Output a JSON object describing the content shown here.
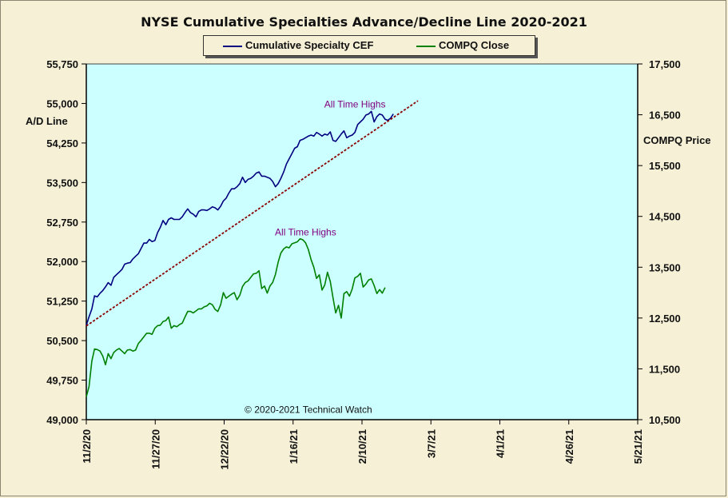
{
  "chart_data": {
    "type": "line",
    "title": "NYSE Cumulative  Specialties  Advance/Decline  Line  2020-2021",
    "legend": [
      {
        "name": "Cumulative Specialty CEF",
        "color": "#000080"
      },
      {
        "name": "COMPQ Close",
        "color": "#008000"
      }
    ],
    "left_axis": {
      "label": "A/D Line",
      "range": [
        49000,
        55750
      ],
      "ticks": [
        "49,000",
        "49,750",
        "50,500",
        "51,250",
        "52,000",
        "52,750",
        "53,500",
        "54,250",
        "55,000",
        "55,750"
      ]
    },
    "right_axis": {
      "label": "COMPQ Price",
      "range": [
        10500,
        17500
      ],
      "ticks": [
        "10,500",
        "11,500",
        "12,500",
        "13,500",
        "14,500",
        "15,500",
        "16,500",
        "17,500"
      ]
    },
    "x_axis": {
      "start": "11/2/20",
      "end": "5/21/21",
      "ticks": [
        "11/2/20",
        "11/27/20",
        "12/22/20",
        "1/16/21",
        "2/10/21",
        "3/7/21",
        "4/1/21",
        "4/26/21",
        "5/21/21"
      ]
    },
    "series": [
      {
        "name": "Cumulative Specialty CEF",
        "color": "#000080",
        "axis": "left",
        "points": [
          [
            0,
            50790
          ],
          [
            1,
            50950
          ],
          [
            2,
            51100
          ],
          [
            3,
            51350
          ],
          [
            4,
            51330
          ],
          [
            5,
            51400
          ],
          [
            6,
            51450
          ],
          [
            7,
            51520
          ],
          [
            8,
            51600
          ],
          [
            9,
            51550
          ],
          [
            10,
            51700
          ],
          [
            11,
            51750
          ],
          [
            12,
            51800
          ],
          [
            13,
            51850
          ],
          [
            14,
            51950
          ],
          [
            15,
            51970
          ],
          [
            16,
            51980
          ],
          [
            17,
            52050
          ],
          [
            18,
            52100
          ],
          [
            19,
            52150
          ],
          [
            20,
            52250
          ],
          [
            21,
            52350
          ],
          [
            22,
            52350
          ],
          [
            23,
            52420
          ],
          [
            24,
            52380
          ],
          [
            25,
            52400
          ],
          [
            26,
            52550
          ],
          [
            27,
            52650
          ],
          [
            28,
            52780
          ],
          [
            29,
            52700
          ],
          [
            30,
            52800
          ],
          [
            31,
            52830
          ],
          [
            32,
            52800
          ],
          [
            33,
            52800
          ],
          [
            34,
            52800
          ],
          [
            35,
            52850
          ],
          [
            36,
            52930
          ],
          [
            37,
            53000
          ],
          [
            38,
            52930
          ],
          [
            39,
            52900
          ],
          [
            40,
            52850
          ],
          [
            41,
            52950
          ],
          [
            42,
            52980
          ],
          [
            43,
            52980
          ],
          [
            44,
            52970
          ],
          [
            45,
            53000
          ],
          [
            46,
            53040
          ],
          [
            47,
            53020
          ],
          [
            48,
            52980
          ],
          [
            49,
            53050
          ],
          [
            50,
            53150
          ],
          [
            51,
            53200
          ],
          [
            52,
            53300
          ],
          [
            53,
            53380
          ],
          [
            54,
            53380
          ],
          [
            55,
            53420
          ],
          [
            56,
            53480
          ],
          [
            57,
            53600
          ],
          [
            58,
            53500
          ],
          [
            59,
            53560
          ],
          [
            60,
            53580
          ],
          [
            61,
            53620
          ],
          [
            62,
            53680
          ],
          [
            63,
            53700
          ],
          [
            64,
            53620
          ],
          [
            65,
            53620
          ],
          [
            66,
            53600
          ],
          [
            67,
            53580
          ],
          [
            68,
            53520
          ],
          [
            69,
            53420
          ],
          [
            70,
            53480
          ],
          [
            71,
            53580
          ],
          [
            72,
            53700
          ],
          [
            73,
            53850
          ],
          [
            74,
            53950
          ],
          [
            75,
            54050
          ],
          [
            76,
            54150
          ],
          [
            77,
            54180
          ],
          [
            78,
            54300
          ],
          [
            79,
            54320
          ],
          [
            80,
            54350
          ],
          [
            81,
            54380
          ],
          [
            82,
            54400
          ],
          [
            83,
            54380
          ],
          [
            84,
            54450
          ],
          [
            85,
            54420
          ],
          [
            86,
            54380
          ],
          [
            87,
            54420
          ],
          [
            88,
            54400
          ],
          [
            89,
            54460
          ],
          [
            90,
            54300
          ],
          [
            91,
            54280
          ],
          [
            92,
            54350
          ],
          [
            93,
            54420
          ],
          [
            94,
            54480
          ],
          [
            95,
            54350
          ],
          [
            96,
            54380
          ],
          [
            97,
            54400
          ],
          [
            98,
            54450
          ],
          [
            99,
            54600
          ],
          [
            100,
            54650
          ],
          [
            101,
            54700
          ],
          [
            102,
            54780
          ],
          [
            103,
            54800
          ],
          [
            104,
            54850
          ],
          [
            105,
            54650
          ],
          [
            106,
            54750
          ],
          [
            107,
            54800
          ],
          [
            108,
            54780
          ],
          [
            109,
            54700
          ],
          [
            110,
            54680
          ],
          [
            111,
            54720
          ],
          [
            112,
            54800
          ]
        ]
      },
      {
        "name": "COMPQ Close",
        "color": "#008000",
        "axis": "right",
        "points": [
          [
            0,
            10950
          ],
          [
            1,
            11150
          ],
          [
            2,
            11650
          ],
          [
            3,
            11890
          ],
          [
            4,
            11880
          ],
          [
            5,
            11850
          ],
          [
            6,
            11750
          ],
          [
            7,
            11580
          ],
          [
            8,
            11800
          ],
          [
            9,
            11700
          ],
          [
            10,
            11820
          ],
          [
            11,
            11870
          ],
          [
            12,
            11900
          ],
          [
            13,
            11850
          ],
          [
            14,
            11800
          ],
          [
            15,
            11870
          ],
          [
            16,
            11880
          ],
          [
            17,
            11850
          ],
          [
            18,
            11870
          ],
          [
            19,
            12000
          ],
          [
            20,
            12060
          ],
          [
            21,
            12130
          ],
          [
            22,
            12200
          ],
          [
            23,
            12200
          ],
          [
            24,
            12180
          ],
          [
            25,
            12300
          ],
          [
            26,
            12350
          ],
          [
            27,
            12360
          ],
          [
            28,
            12430
          ],
          [
            29,
            12450
          ],
          [
            30,
            12520
          ],
          [
            31,
            12300
          ],
          [
            32,
            12350
          ],
          [
            33,
            12330
          ],
          [
            34,
            12370
          ],
          [
            35,
            12400
          ],
          [
            36,
            12520
          ],
          [
            37,
            12630
          ],
          [
            38,
            12630
          ],
          [
            39,
            12600
          ],
          [
            40,
            12640
          ],
          [
            41,
            12680
          ],
          [
            42,
            12680
          ],
          [
            43,
            12720
          ],
          [
            44,
            12740
          ],
          [
            45,
            12790
          ],
          [
            46,
            12760
          ],
          [
            47,
            12670
          ],
          [
            48,
            12630
          ],
          [
            49,
            12760
          ],
          [
            50,
            13000
          ],
          [
            51,
            12890
          ],
          [
            52,
            12930
          ],
          [
            53,
            12970
          ],
          [
            54,
            13000
          ],
          [
            55,
            12860
          ],
          [
            56,
            12950
          ],
          [
            57,
            13120
          ],
          [
            58,
            13200
          ],
          [
            59,
            13230
          ],
          [
            60,
            13300
          ],
          [
            61,
            13370
          ],
          [
            62,
            13380
          ],
          [
            63,
            13430
          ],
          [
            64,
            13080
          ],
          [
            65,
            13130
          ],
          [
            66,
            12990
          ],
          [
            67,
            13130
          ],
          [
            68,
            13200
          ],
          [
            69,
            13360
          ],
          [
            70,
            13600
          ],
          [
            71,
            13780
          ],
          [
            72,
            13860
          ],
          [
            73,
            13900
          ],
          [
            74,
            13880
          ],
          [
            75,
            13960
          ],
          [
            76,
            13980
          ],
          [
            77,
            14000
          ],
          [
            78,
            14060
          ],
          [
            79,
            14040
          ],
          [
            80,
            13980
          ],
          [
            81,
            13850
          ],
          [
            82,
            13650
          ],
          [
            83,
            13500
          ],
          [
            84,
            13280
          ],
          [
            85,
            13350
          ],
          [
            86,
            13050
          ],
          [
            87,
            13150
          ],
          [
            88,
            13400
          ],
          [
            89,
            13220
          ],
          [
            90,
            12900
          ],
          [
            91,
            12600
          ],
          [
            92,
            12750
          ],
          [
            93,
            12500
          ],
          [
            94,
            12980
          ],
          [
            95,
            13020
          ],
          [
            96,
            12930
          ],
          [
            97,
            13070
          ],
          [
            98,
            13290
          ],
          [
            99,
            13320
          ],
          [
            100,
            13380
          ],
          [
            101,
            13110
          ],
          [
            102,
            13170
          ],
          [
            103,
            13250
          ],
          [
            104,
            13270
          ],
          [
            105,
            13140
          ],
          [
            106,
            12980
          ],
          [
            107,
            13060
          ],
          [
            108,
            12990
          ],
          [
            109,
            13100
          ]
        ]
      },
      {
        "name": "",
        "style": "dashed",
        "color": "#8b0000",
        "axis": "left",
        "points": [
          [
            0,
            50780
          ],
          [
            121,
            55050
          ]
        ]
      }
    ],
    "annotations": [
      {
        "text": "All Time Highs",
        "x": 98,
        "y": 54920,
        "axis": "left",
        "color": "#800080"
      },
      {
        "text": "All Time Highs",
        "x": 80,
        "y": 52500,
        "axis": "left",
        "color": "#800080"
      },
      {
        "text": "© 2020-2021  Technical  Watch",
        "x": 81,
        "y": 49130,
        "axis": "left",
        "color": "#111111"
      }
    ],
    "plot_background": "#ccffff",
    "grid": false
  }
}
